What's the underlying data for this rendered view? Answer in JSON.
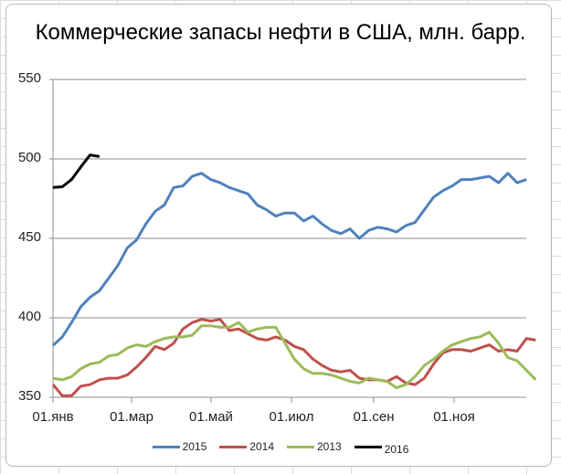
{
  "chart_data": {
    "type": "line",
    "title": "Коммерческие запасы нефти в США, млн. барр.",
    "xlabel": "",
    "ylabel": "",
    "ylim": [
      350,
      550
    ],
    "yticks": [
      350,
      400,
      450,
      500,
      550
    ],
    "xtick_labels": [
      "01.янв",
      "01.мар",
      "01.май",
      "01.июл",
      "01.сен",
      "01.ноя"
    ],
    "x_unit": "week",
    "grid": "horizontal",
    "legend_position": "bottom",
    "series": [
      {
        "name": "2015",
        "color": "#4f81bd",
        "values": [
          382.6,
          388,
          397,
          407,
          413,
          417,
          425,
          433,
          444,
          449,
          459,
          467,
          471,
          482,
          483,
          489,
          491,
          487,
          485,
          482,
          480,
          478,
          471,
          468,
          464,
          466,
          466,
          461,
          464,
          459,
          455,
          453,
          456,
          450,
          455,
          457,
          456,
          454,
          458,
          460,
          468,
          476,
          480,
          483,
          487,
          487,
          488,
          489,
          485,
          491,
          485,
          487
        ]
      },
      {
        "name": "2014",
        "color": "#c0504d",
        "values": [
          358,
          351,
          351,
          357,
          358,
          361,
          362,
          362,
          364,
          369,
          375,
          382,
          380,
          384,
          393,
          397,
          399,
          398,
          399,
          392,
          393,
          390,
          387,
          386,
          388,
          386,
          382,
          380,
          374,
          370,
          367,
          366,
          367,
          362,
          361,
          361,
          360,
          363,
          359,
          358,
          362,
          371,
          378,
          380,
          380,
          379,
          381,
          383,
          379,
          380,
          379,
          387,
          386
        ]
      },
      {
        "name": "2013",
        "color": "#9bbb59",
        "values": [
          362,
          361,
          363,
          368,
          371,
          372,
          376,
          377,
          381,
          383,
          382,
          385,
          387,
          388,
          388,
          389,
          395,
          395,
          394,
          394,
          397,
          391,
          393,
          394,
          394,
          384,
          374,
          368,
          365,
          365,
          364,
          362,
          360,
          359,
          362,
          361,
          360,
          356,
          358,
          363,
          370,
          374,
          379,
          383,
          385,
          387,
          388,
          391,
          384,
          375,
          373,
          367,
          361
        ]
      },
      {
        "name": "2016",
        "color": "#000000",
        "values": [
          482,
          482.5,
          487,
          495,
          502.5,
          501.5
        ]
      }
    ]
  },
  "legend": {
    "items": [
      {
        "label": "2015",
        "color": "#4f81bd"
      },
      {
        "label": "2014",
        "color": "#c0504d"
      },
      {
        "label": "2013",
        "color": "#9bbb59"
      },
      {
        "label": "2016",
        "color": "#000000"
      }
    ]
  }
}
